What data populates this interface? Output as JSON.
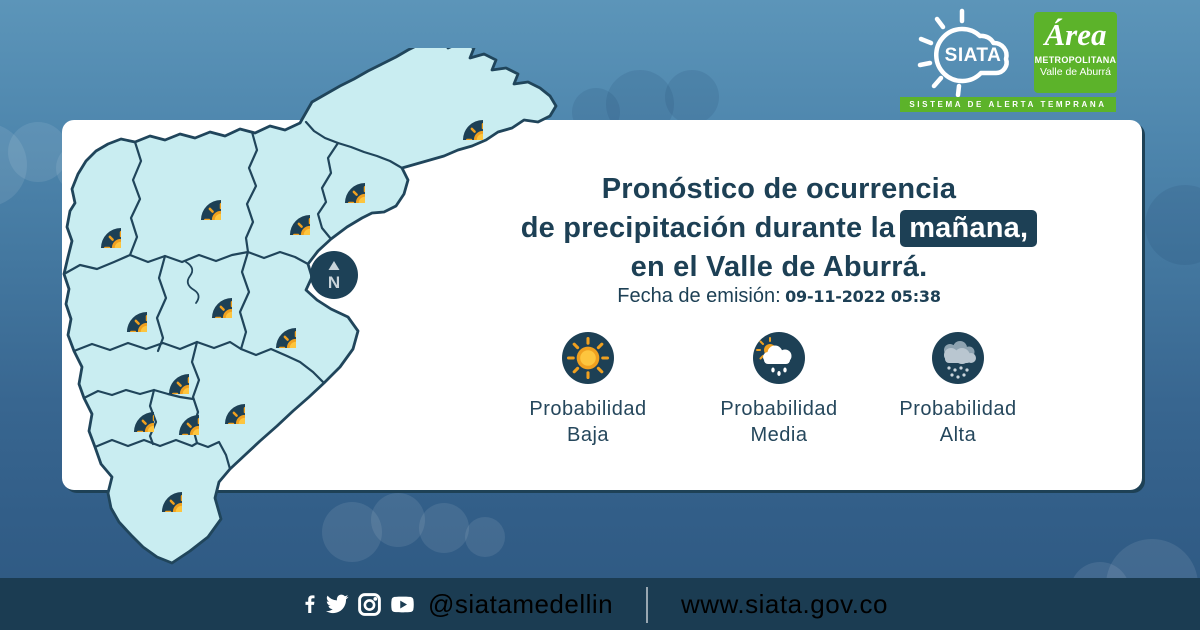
{
  "header": {
    "siata_logo_text": "SIATA",
    "amva_logo": {
      "script": "Área",
      "line2": "METROPOLITANA",
      "line3": "Valle de Aburrá"
    },
    "banner": "SISTEMA DE ALERTA TEMPRANA"
  },
  "card": {
    "title_line1": "Pronóstico de ocurrencia",
    "title_line2_prefix": "de precipitación durante la",
    "title_highlight": "mañana,",
    "title_line3": "en el Valle de Aburrá.",
    "emission_label": "Fecha de emisión:",
    "emission_value": "09-11-2022 05:38",
    "compass_label": "N",
    "legend": [
      {
        "icon": "sun-icon",
        "line1": "Probabilidad",
        "line2": "Baja"
      },
      {
        "icon": "sun-cloud-rain-icon",
        "line1": "Probabilidad",
        "line2": "Media"
      },
      {
        "icon": "storm-cloud-rain-icon",
        "line1": "Probabilidad",
        "line2": "Alta"
      }
    ]
  },
  "map": {
    "region_name": "Valle de Aburrá",
    "forecasts": [
      {
        "icon": "sun-icon",
        "level": "Probabilidad Baja"
      },
      {
        "icon": "sun-icon",
        "level": "Probabilidad Baja"
      },
      {
        "icon": "sun-icon",
        "level": "Probabilidad Baja"
      },
      {
        "icon": "sun-icon",
        "level": "Probabilidad Baja"
      },
      {
        "icon": "sun-icon",
        "level": "Probabilidad Baja"
      },
      {
        "icon": "sun-icon",
        "level": "Probabilidad Baja"
      },
      {
        "icon": "sun-icon",
        "level": "Probabilidad Baja"
      },
      {
        "icon": "sun-icon",
        "level": "Probabilidad Baja"
      },
      {
        "icon": "sun-icon",
        "level": "Probabilidad Baja"
      },
      {
        "icon": "sun-icon",
        "level": "Probabilidad Baja"
      },
      {
        "icon": "sun-icon",
        "level": "Probabilidad Baja"
      },
      {
        "icon": "sun-icon",
        "level": "Probabilidad Baja"
      },
      {
        "icon": "sun-icon",
        "level": "Probabilidad Baja"
      }
    ]
  },
  "footer": {
    "handle": "@siatamedellin",
    "website": "www.siata.gov.co",
    "social_icons": [
      "facebook-icon",
      "twitter-icon",
      "instagram-icon",
      "youtube-icon"
    ]
  },
  "colors": {
    "navy": "#1d4055",
    "map_fill": "#c9edf1",
    "map_stroke": "#20455b",
    "green": "#5cb32a",
    "footer_bar": "#1b3c52",
    "sun_outer": "#f0a01f",
    "sun_inner": "#fdc53e",
    "card_bg": "#ffffff"
  }
}
